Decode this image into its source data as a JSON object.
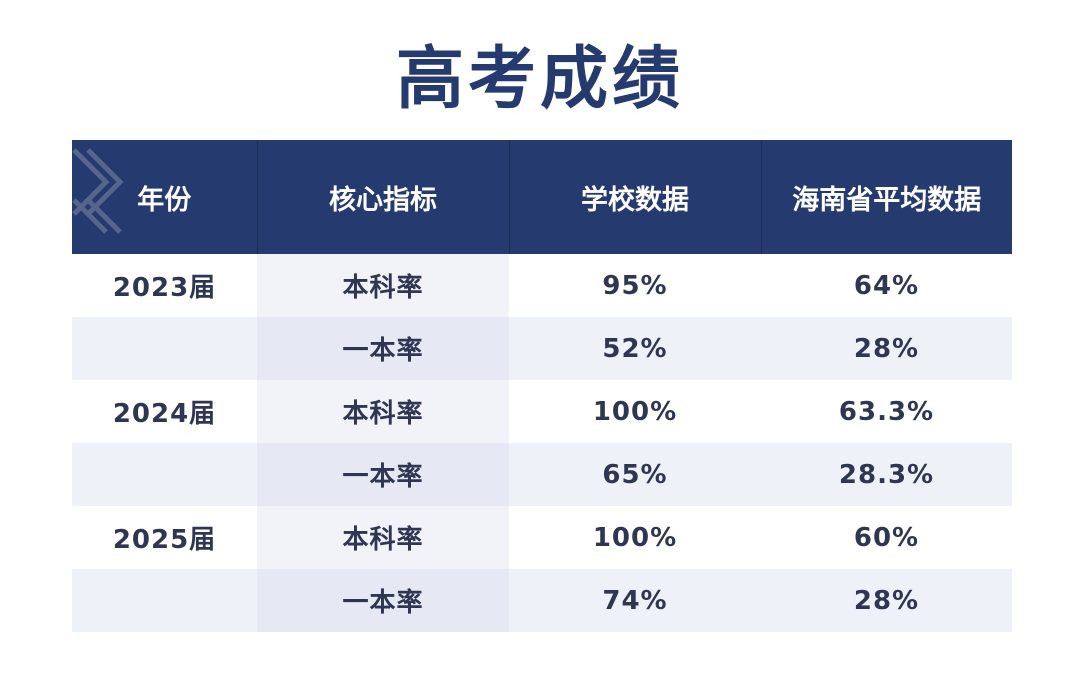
{
  "title": "高考成绩",
  "table": {
    "headers": [
      "年份",
      "核心指标",
      "学校数据",
      "海南省平均数据"
    ],
    "rows": [
      {
        "year": "2023届",
        "metric": "本科率",
        "school": "95%",
        "province": "64%"
      },
      {
        "year": "",
        "metric": "一本率",
        "school": "52%",
        "province": "28%"
      },
      {
        "year": "2024届",
        "metric": "本科率",
        "school": "100%",
        "province": "63.3%"
      },
      {
        "year": "",
        "metric": "一本率",
        "school": "65%",
        "province": "28.3%"
      },
      {
        "year": "2025届",
        "metric": "本科率",
        "school": "100%",
        "province": "60%"
      },
      {
        "year": "",
        "metric": "一本率",
        "school": "74%",
        "province": "28%"
      }
    ]
  },
  "colors": {
    "header_bg": "#253a6e",
    "title": "#253a6e",
    "text": "#2e3652",
    "row_alt": "#eef1f7"
  }
}
